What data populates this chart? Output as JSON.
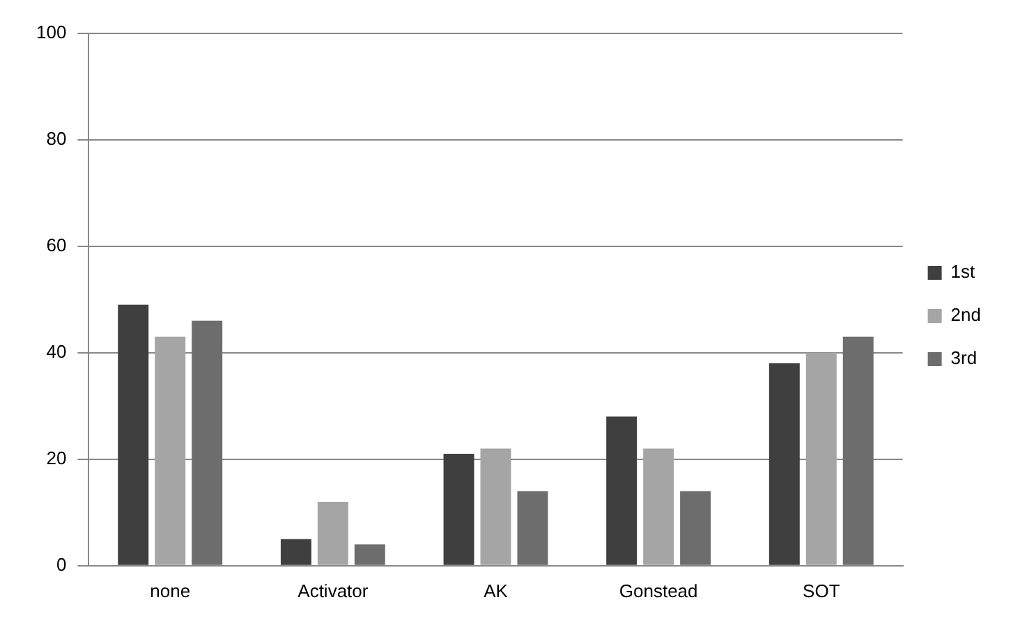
{
  "chart_data": {
    "type": "bar",
    "categories": [
      "none",
      "Activator",
      "AK",
      "Gonstead",
      "SOT"
    ],
    "series": [
      {
        "name": "1st",
        "color": "#3f3f3f",
        "values": [
          49,
          5,
          21,
          28,
          38
        ]
      },
      {
        "name": "2nd",
        "color": "#a5a5a5",
        "values": [
          43,
          12,
          22,
          22,
          40
        ]
      },
      {
        "name": "3rd",
        "color": "#6d6d6d",
        "values": [
          46,
          4,
          14,
          14,
          43
        ]
      }
    ],
    "ylim": [
      0,
      100
    ],
    "yticks": [
      0,
      20,
      40,
      60,
      80,
      100
    ],
    "grid": "y",
    "legend": "right"
  }
}
